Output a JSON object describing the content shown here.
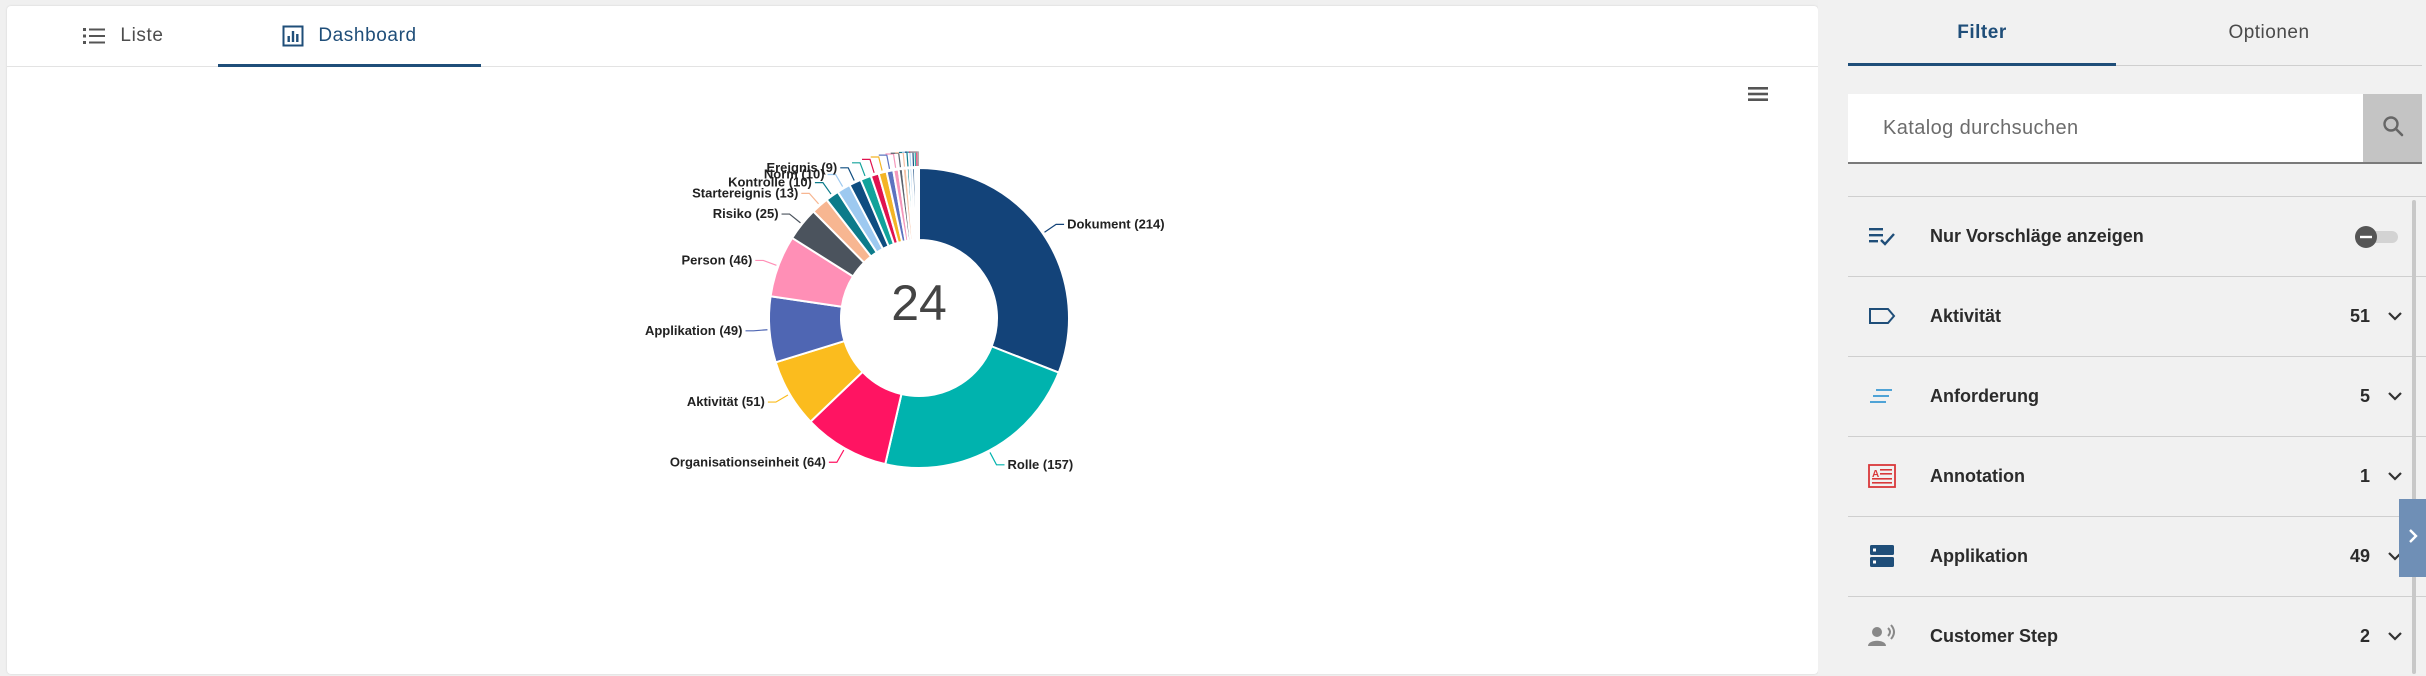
{
  "main": {
    "tabs": [
      {
        "label": "Liste",
        "icon": "list-icon",
        "active": false
      },
      {
        "label": "Dashboard",
        "icon": "dashboard-chart-icon",
        "active": true
      }
    ],
    "menu_icon": "hamburger-menu-icon"
  },
  "chart_data": {
    "type": "pie",
    "donut": true,
    "center_label": "24",
    "slices": [
      {
        "label": "Dokument (214)",
        "value": 214,
        "color": "#134379"
      },
      {
        "label": "Rolle (157)",
        "value": 157,
        "color": "#00b3ae"
      },
      {
        "label": "Organisationseinheit (64)",
        "value": 64,
        "color": "#ff1462"
      },
      {
        "label": "Aktivität (51)",
        "value": 51,
        "color": "#fbbc1e"
      },
      {
        "label": "Applikation (49)",
        "value": 49,
        "color": "#4f66b3"
      },
      {
        "label": "Person (46)",
        "value": 46,
        "color": "#ff8fb6"
      },
      {
        "label": "Risiko (25)",
        "value": 25,
        "color": "#4b535d"
      },
      {
        "label": "Startereignis (13)",
        "value": 13,
        "color": "#f7b691"
      },
      {
        "label": "Kontrolle (10)",
        "value": 10,
        "color": "#0c7b8a"
      },
      {
        "label": "Norm (10)",
        "value": 10,
        "color": "#9dc9f0"
      },
      {
        "label": "Ereignis (9)",
        "value": 9,
        "color": "#0f4d80"
      },
      {
        "label": "",
        "value": 8,
        "color": "#12a39b"
      },
      {
        "label": "",
        "value": 6,
        "color": "#e0134f"
      },
      {
        "label": "",
        "value": 6,
        "color": "#f4b526"
      },
      {
        "label": "",
        "value": 5,
        "color": "#5c73c0"
      },
      {
        "label": "",
        "value": 4,
        "color": "#f597bb"
      },
      {
        "label": "",
        "value": 3,
        "color": "#5b636d"
      },
      {
        "label": "",
        "value": 3,
        "color": "#f6c3a5"
      },
      {
        "label": "",
        "value": 2,
        "color": "#127f8c"
      },
      {
        "label": "",
        "value": 2,
        "color": "#b0d4f2"
      },
      {
        "label": "",
        "value": 2,
        "color": "#1d4f84"
      },
      {
        "label": "",
        "value": 1,
        "color": "#2bb3a8"
      },
      {
        "label": "",
        "value": 1,
        "color": "#e33b6b"
      },
      {
        "label": "",
        "value": 1,
        "color": "#a3a3a3"
      }
    ]
  },
  "sidebar": {
    "tabs": [
      {
        "label": "Filter",
        "active": true
      },
      {
        "label": "Optionen",
        "active": false
      }
    ],
    "search": {
      "placeholder": "Katalog durchsuchen",
      "value": "",
      "icon": "search-icon"
    },
    "filters": [
      {
        "label": "Nur Vorschläge anzeigen",
        "count": "",
        "icon": "checklist-icon",
        "type": "toggle",
        "toggle_on": false
      },
      {
        "label": "Aktivität",
        "count": "51",
        "icon": "activity-tag-icon",
        "type": "expand"
      },
      {
        "label": "Anforderung",
        "count": "5",
        "icon": "requirement-lines-icon",
        "type": "expand"
      },
      {
        "label": "Annotation",
        "count": "1",
        "icon": "annotation-icon",
        "type": "expand"
      },
      {
        "label": "Applikation",
        "count": "49",
        "icon": "application-server-icon",
        "type": "expand"
      },
      {
        "label": "Customer Step",
        "count": "2",
        "icon": "customer-voice-icon",
        "type": "expand"
      }
    ],
    "panel_toggle_icon": "chevron-right-icon"
  }
}
